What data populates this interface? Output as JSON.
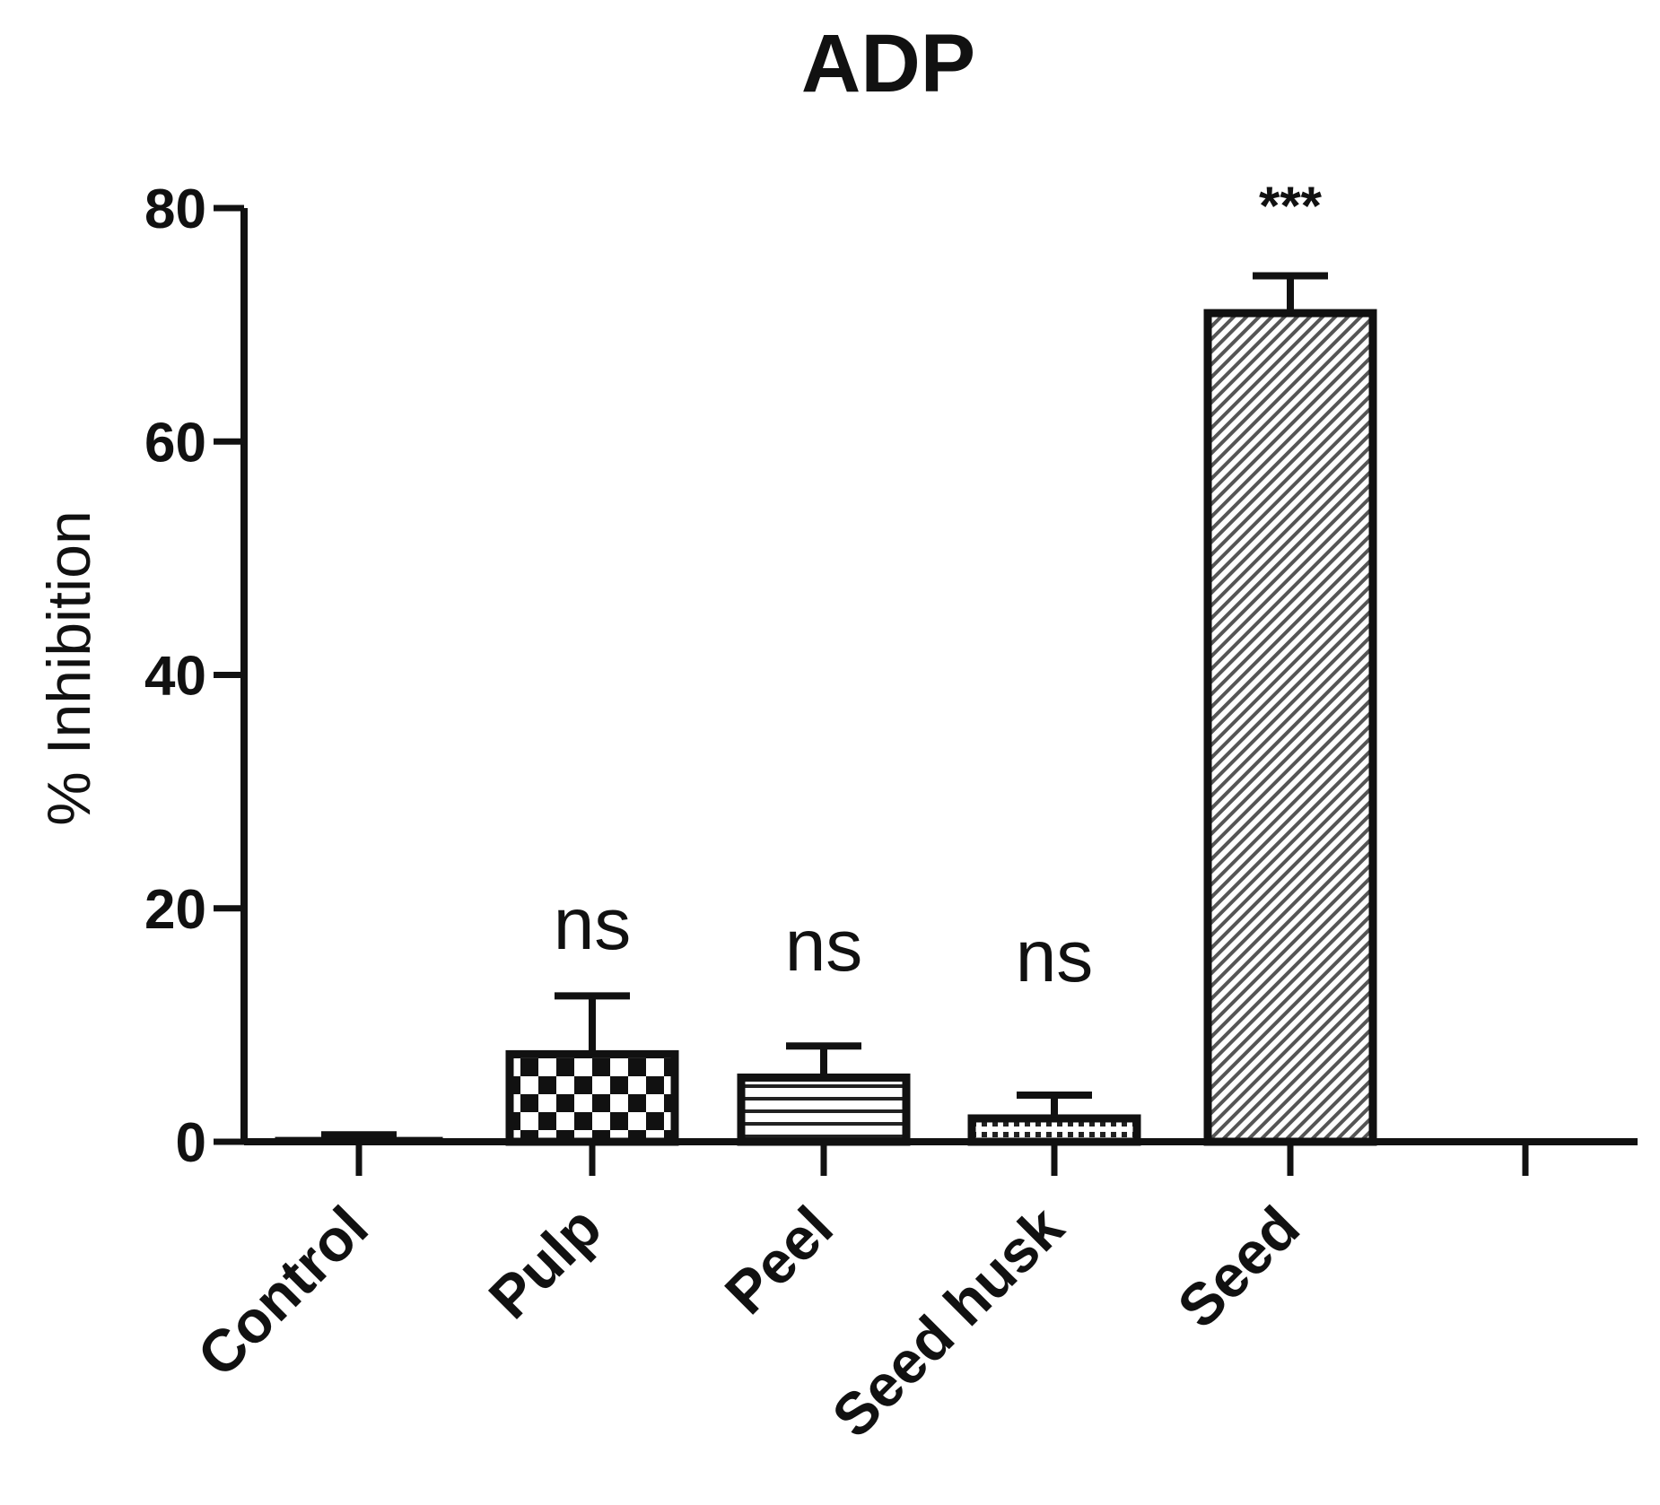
{
  "chart_data": {
    "type": "bar",
    "title": "ADP",
    "xlabel": "",
    "ylabel": "% Inhibition",
    "ylim": [
      0,
      80
    ],
    "yticks": [
      0,
      20,
      40,
      60,
      80
    ],
    "categories": [
      "Control",
      "Pulp",
      "Peel",
      "Seed husk",
      "Seed"
    ],
    "values": [
      0.3,
      7.5,
      5.5,
      2.0,
      71
    ],
    "error": [
      0.3,
      5,
      2.7,
      2.0,
      3.2
    ],
    "annotations": [
      "",
      "ns",
      "ns",
      "ns",
      "***"
    ],
    "fills": [
      "solid-black",
      "checkerboard",
      "horizontal-lines",
      "dotted",
      "diagonal-hatch"
    ],
    "grid": false,
    "legend": "none",
    "colors": {
      "stroke": "#111111",
      "background": "#ffffff"
    }
  }
}
